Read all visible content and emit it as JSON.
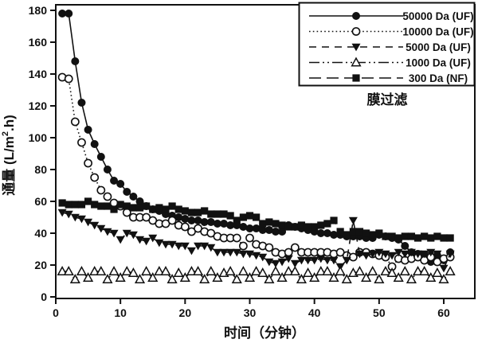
{
  "figure": {
    "caption_under_legend": "膜过滤"
  },
  "chart_data": {
    "type": "line",
    "title": "",
    "xlabel": "时间（分钟）",
    "ylabel": "通量 (L/m².h)",
    "ylabel_parts": {
      "pre": "通量 (L/m",
      "sup": "2",
      "post": ".h)"
    },
    "xlim": [
      0,
      64.8
    ],
    "ylim": [
      0,
      183.5
    ],
    "xticks": [
      0,
      10,
      20,
      30,
      40,
      50,
      60
    ],
    "yticks": [
      0,
      20,
      40,
      60,
      80,
      100,
      120,
      140,
      160,
      180
    ],
    "grid": false,
    "legend_position": "top-right",
    "legend_note": "膜过滤",
    "color": "#111111",
    "background": "#ffffff",
    "x": [
      1,
      2,
      3,
      4,
      5,
      6,
      7,
      8,
      9,
      10,
      11,
      12,
      13,
      14,
      15,
      16,
      17,
      18,
      19,
      20,
      21,
      22,
      23,
      24,
      25,
      26,
      27,
      28,
      29,
      30,
      31,
      32,
      33,
      34,
      35,
      36,
      37,
      38,
      39,
      40,
      41,
      42,
      43,
      44,
      45,
      46,
      47,
      48,
      49,
      50,
      51,
      52,
      53,
      54,
      55,
      56,
      57,
      58,
      59,
      60,
      61
    ],
    "series": [
      {
        "name": "50000 Da (UF)",
        "marker": "circle-filled",
        "line": "solid",
        "values": [
          178,
          178,
          148,
          122,
          105,
          96,
          88,
          80,
          73,
          71,
          66,
          63,
          60,
          57,
          55,
          54,
          52,
          51,
          50,
          49,
          48,
          48,
          47,
          47,
          46,
          46,
          45,
          45,
          44,
          43,
          43,
          42,
          42,
          41,
          41,
          45,
          44,
          43,
          42,
          41,
          40,
          40,
          39,
          39,
          38,
          38,
          38,
          37,
          37,
          39,
          38,
          37,
          36,
          32,
          28,
          27,
          26,
          22,
          26,
          23,
          28
        ]
      },
      {
        "name": "10000 Da (UF)",
        "marker": "circle-open",
        "line": "dotted",
        "values": [
          138,
          137,
          110,
          97,
          84,
          75,
          67,
          63,
          59,
          57,
          53,
          50,
          50,
          50,
          48,
          46,
          46,
          48,
          45,
          44,
          41,
          43,
          41,
          40,
          38,
          37,
          37,
          37,
          32,
          37,
          33,
          32,
          31,
          28,
          27,
          28,
          31,
          28,
          28,
          28,
          28,
          28,
          27,
          28,
          26,
          25,
          28,
          28,
          27,
          26,
          25,
          19,
          24,
          23,
          24,
          25,
          23,
          25,
          22,
          24,
          25
        ]
      },
      {
        "name": "5000 Da (UF)",
        "marker": "triangle-down-filled",
        "line": "dashed",
        "values": [
          53,
          52,
          50,
          49,
          47,
          45,
          43,
          41,
          40,
          36,
          40,
          39,
          36,
          35,
          37,
          34,
          33,
          33,
          32,
          32,
          29,
          32,
          32,
          31,
          28,
          28,
          28,
          28,
          27,
          27,
          26,
          25,
          22,
          21,
          22,
          24,
          21,
          23,
          23,
          23,
          24,
          23,
          23,
          19,
          23,
          48,
          27,
          26,
          27,
          28,
          27,
          26,
          28,
          27,
          28,
          27,
          27,
          28,
          27,
          18,
          27
        ]
      },
      {
        "name": "1000 Da (UF)",
        "marker": "triangle-up-open",
        "line": "dashdotdot",
        "values": [
          16,
          16,
          11,
          16,
          12,
          16,
          16,
          11,
          16,
          12,
          16,
          15,
          11,
          16,
          12,
          16,
          16,
          11,
          15,
          12,
          16,
          16,
          11,
          16,
          12,
          15,
          16,
          11,
          16,
          12,
          16,
          15,
          11,
          16,
          12,
          16,
          16,
          11,
          15,
          12,
          16,
          16,
          12,
          16,
          11,
          15,
          16,
          12,
          16,
          11,
          16,
          15,
          12,
          16,
          11,
          16,
          16,
          12,
          15,
          11,
          16
        ]
      },
      {
        "name": "300 Da (NF)",
        "marker": "square-filled",
        "line": "longdash",
        "values": [
          59,
          58,
          58,
          58,
          60,
          58,
          57,
          57,
          55,
          58,
          57,
          56,
          56,
          57,
          55,
          56,
          55,
          57,
          55,
          54,
          53,
          53,
          54,
          52,
          52,
          52,
          51,
          48,
          50,
          51,
          50,
          46,
          47,
          46,
          45,
          44,
          44,
          45,
          44,
          44,
          45,
          46,
          48,
          41,
          39,
          41,
          41,
          40,
          39,
          40,
          38,
          38,
          37,
          38,
          38,
          37,
          38,
          37,
          38,
          37,
          37
        ]
      }
    ]
  }
}
